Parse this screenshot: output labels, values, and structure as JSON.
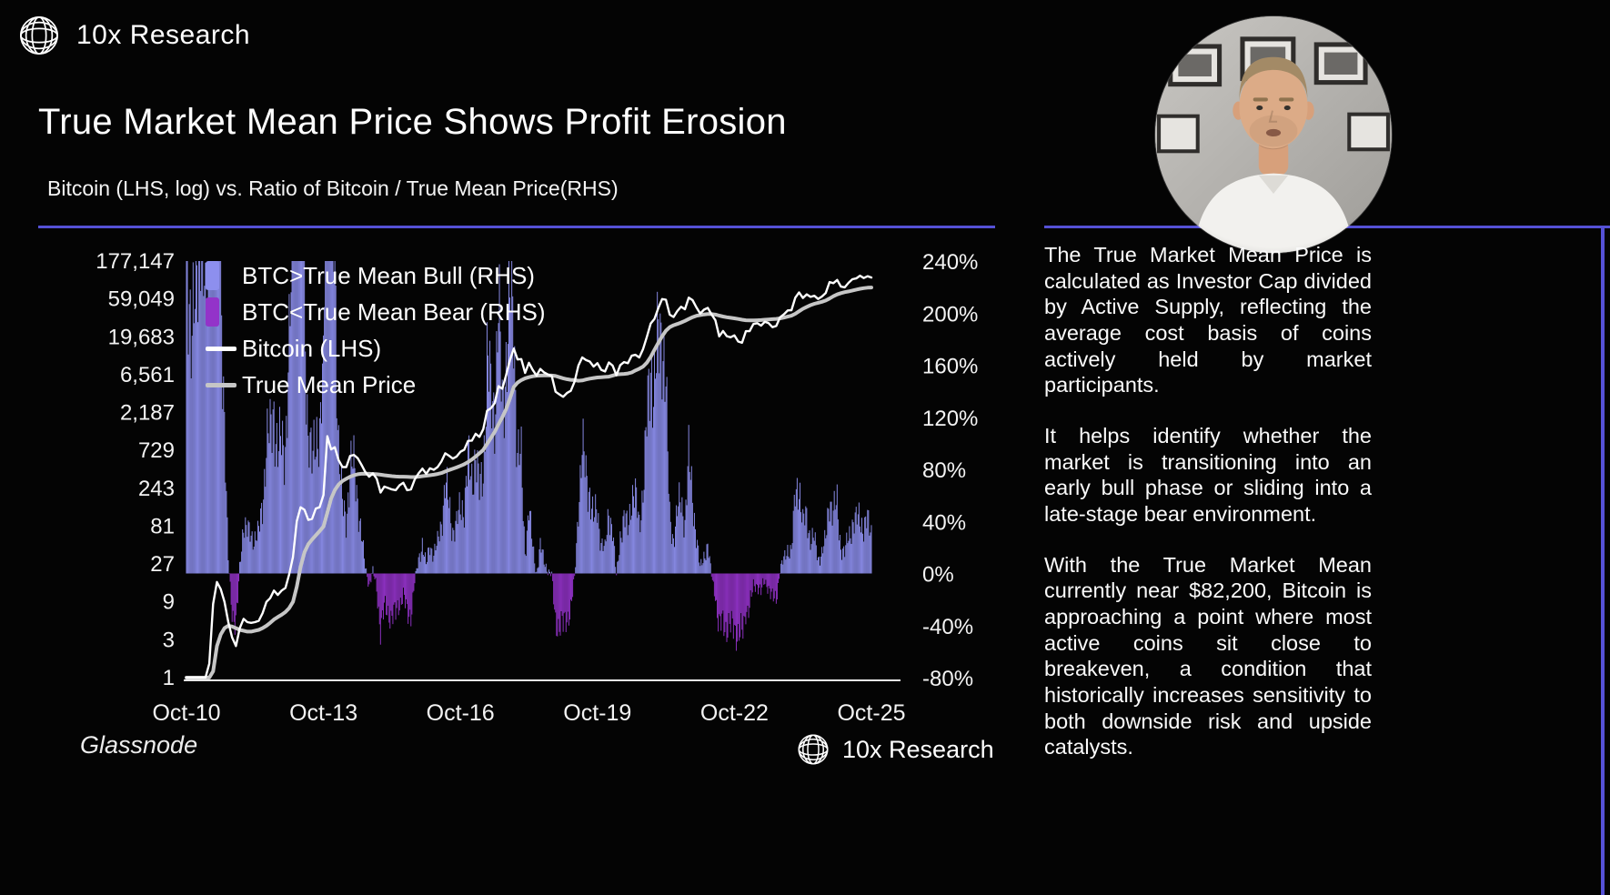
{
  "brand": {
    "name": "10x Research"
  },
  "header": {
    "title": "True Market Mean Price Shows Profit Erosion",
    "subtitle": "Bitcoin (LHS, log) vs. Ratio of Bitcoin / True Mean Price(RHS)"
  },
  "colors": {
    "background": "#040404",
    "accent_purple": "#5551d6",
    "bull": "#8d8fee",
    "bear": "#9333c9",
    "bitcoin_line": "#ffffff",
    "true_mean_line": "#c6c6c6"
  },
  "chart_data": {
    "type": "mixed-bar-line",
    "title": "True Market Mean Price Shows Profit Erosion",
    "x_start": "Oct-2010",
    "x_end": "Oct-2025",
    "interval": "monthly",
    "x_ticks": [
      "Oct-10",
      "Oct-13",
      "Oct-16",
      "Oct-19",
      "Oct-22",
      "Oct-25"
    ],
    "left_axis": {
      "label": "Bitcoin price USD (LHS, log)",
      "scale": "log base 3",
      "range": [
        1,
        177147
      ],
      "ticks": [
        "177,147",
        "59,049",
        "19,683",
        "6,561",
        "2,187",
        "729",
        "243",
        "81",
        "27",
        "9",
        "3",
        "1"
      ]
    },
    "right_axis": {
      "label": "Ratio of Bitcoin / True Mean Price (RHS)",
      "range_pct": [
        -80,
        240
      ],
      "ticks": [
        "240%",
        "200%",
        "160%",
        "120%",
        "80%",
        "40%",
        "0%",
        "-40%",
        "-80%"
      ]
    },
    "legend": [
      {
        "label": "BTC>True Mean Bull (RHS)",
        "type": "bar",
        "color": "#8d8fee"
      },
      {
        "label": "BTC<True Mean Bear (RHS)",
        "type": "bar",
        "color": "#9333c9"
      },
      {
        "label": "Bitcoin (LHS)",
        "type": "line",
        "color": "#ffffff"
      },
      {
        "label": "True Mean Price",
        "type": "line",
        "color": "#c6c6c6"
      }
    ],
    "series": [
      {
        "name": "Bitcoin (LHS)",
        "type": "line",
        "axis": "left",
        "values": [
          0.19,
          0.25,
          0.3,
          0.45,
          0.9,
          0.85,
          1.5,
          8.5,
          16,
          13,
          9,
          5,
          3.2,
          2.5,
          4.2,
          5.5,
          5,
          4.9,
          5,
          5.2,
          6.5,
          9,
          10,
          12.5,
          11,
          12.5,
          13.5,
          20,
          33,
          93,
          140,
          130,
          97,
          100,
          135,
          140,
          200,
          1100,
          750,
          800,
          550,
          450,
          450,
          620,
          640,
          580,
          480,
          390,
          340,
          375,
          320,
          215,
          255,
          245,
          235,
          230,
          265,
          285,
          230,
          235,
          315,
          375,
          430,
          370,
          435,
          415,
          450,
          530,
          670,
          625,
          575,
          610,
          700,
          745,
          960,
          970,
          1180,
          1080,
          1350,
          2300,
          2480,
          2875,
          4700,
          4360,
          6450,
          10000,
          14000,
          10200,
          10300,
          6900,
          9250,
          7500,
          6400,
          7750,
          7000,
          6600,
          6300,
          4000,
          3700,
          3450,
          3850,
          4100,
          5350,
          8550,
          10800,
          10000,
          9600,
          8300,
          9150,
          7550,
          7200,
          9350,
          8550,
          6450,
          8650,
          9450,
          9150,
          11350,
          11650,
          10800,
          13800,
          19700,
          29000,
          33100,
          45100,
          58800,
          57750,
          37300,
          35000,
          41500,
          47150,
          43800,
          61300,
          57000,
          46200,
          38500,
          43200,
          45500,
          37650,
          31800,
          19950,
          23300,
          20050,
          19400,
          20500,
          17150,
          16550,
          23150,
          23150,
          28500,
          29250,
          27200,
          30450,
          29250,
          26000,
          26950,
          34650,
          37700,
          42250,
          42550,
          61150,
          71300,
          60650,
          67500,
          62700,
          64600,
          58950,
          63300,
          70200,
          96400,
          93400,
          102400,
          84350,
          82550,
          94200,
          104600,
          107100,
          115750,
          108200,
          114000,
          110000
        ]
      },
      {
        "name": "True Mean Price",
        "type": "line",
        "axis": "left",
        "values": [
          0.06,
          0.08,
          0.1,
          0.14,
          0.2,
          0.3,
          0.45,
          1.2,
          2.5,
          3.5,
          4.2,
          4.5,
          4.4,
          4.2,
          4,
          3.9,
          3.8,
          3.8,
          3.9,
          4,
          4.2,
          4.5,
          4.9,
          5.4,
          5.8,
          6.2,
          6.7,
          7.5,
          9,
          14,
          25,
          38,
          48,
          55,
          62,
          70,
          80,
          120,
          180,
          230,
          270,
          300,
          320,
          340,
          355,
          365,
          370,
          372,
          370,
          368,
          365,
          360,
          355,
          350,
          345,
          342,
          340,
          340,
          338,
          336,
          336,
          340,
          345,
          350,
          355,
          360,
          368,
          378,
          395,
          412,
          428,
          445,
          465,
          488,
          520,
          560,
          610,
          670,
          740,
          880,
          1050,
          1250,
          1550,
          1900,
          2400,
          3300,
          4600,
          5200,
          5600,
          5900,
          6100,
          6250,
          6350,
          6400,
          6420,
          6420,
          6400,
          6300,
          6100,
          5900,
          5750,
          5650,
          5600,
          5500,
          5550,
          5700,
          5850,
          5950,
          6050,
          6100,
          6150,
          6200,
          6400,
          6600,
          6650,
          6700,
          6800,
          7000,
          7400,
          7800,
          8300,
          9300,
          11000,
          13500,
          16500,
          20000,
          23500,
          26000,
          27500,
          28500,
          29800,
          31200,
          33000,
          34800,
          36200,
          37000,
          37600,
          38000,
          38000,
          37500,
          36400,
          35400,
          34700,
          34100,
          33600,
          33000,
          32300,
          31800,
          31600,
          31600,
          31800,
          32000,
          32300,
          32600,
          32800,
          33100,
          33600,
          34300,
          35300,
          36300,
          38300,
          41300,
          44300,
          46800,
          49300,
          51300,
          52800,
          54300,
          56300,
          59800,
          63800,
          67300,
          69800,
          71800,
          73300,
          75300,
          77300,
          79300,
          80800,
          81800,
          82200
        ]
      },
      {
        "name": "BTC/True Mean ratio bars (RHS)",
        "type": "bar",
        "axis": "right",
        "derived_from": "bitcoin / true_mean - 1, bull when positive, bear when negative"
      }
    ]
  },
  "footer": {
    "source": "Glassnode",
    "watermark": "10x Research"
  },
  "sidebar": {
    "paragraphs": [
      "The True Market Mean Price is calculated as Investor Cap divided by Active Supply, reflecting the average cost basis of coins actively held by market participants.",
      "It helps identify whether the market is transitioning into an early bull phase or sliding into a late-stage bear environment.",
      "With the True Market Mean currently near $82,200, Bitcoin is approaching a point where most active coins sit close to breakeven, a condition that historically increases sensitivity to both downside risk and upside catalysts."
    ]
  }
}
